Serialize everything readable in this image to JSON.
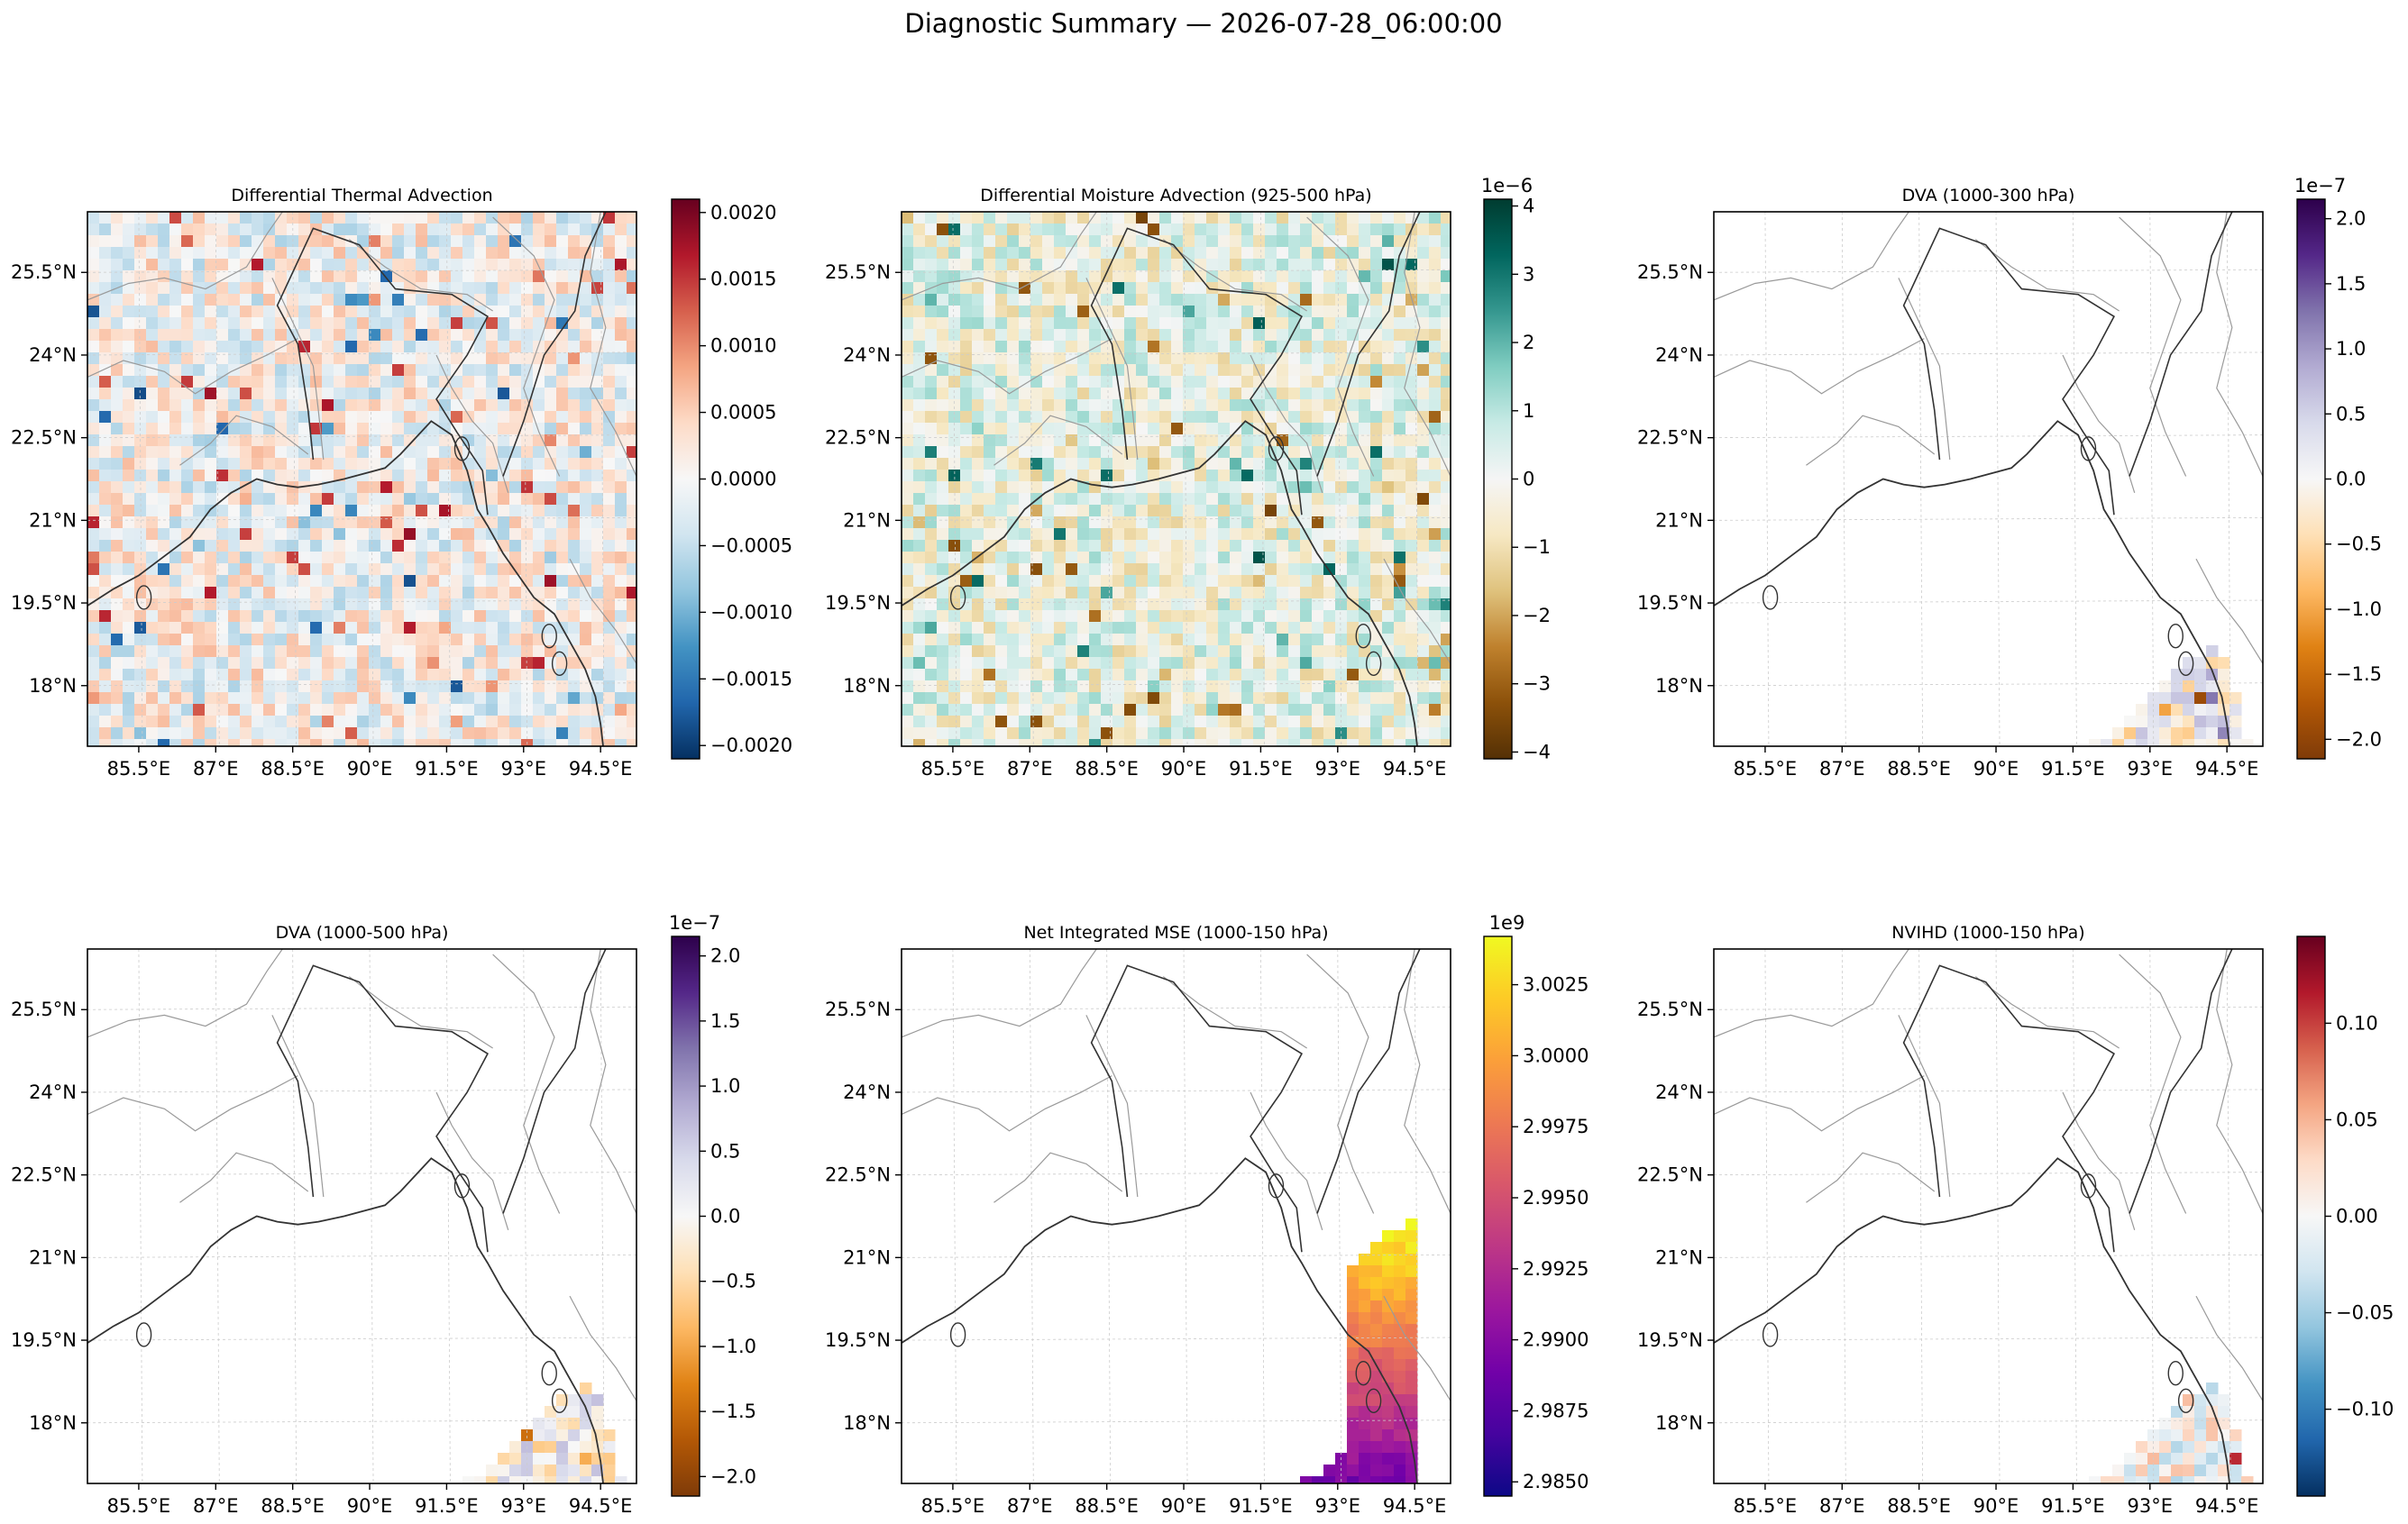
{
  "figure": {
    "title": "Diagnostic Summary — 2026-07-28_06:00:00"
  },
  "map": {
    "lon_ticks": [
      "85.5°E",
      "87°E",
      "88.5°E",
      "90°E",
      "91.5°E",
      "93°E",
      "94.5°E"
    ],
    "lat_ticks": [
      "25.5°N",
      "24°N",
      "22.5°N",
      "21°N",
      "19.5°N",
      "18°N"
    ],
    "lon_values": [
      85.5,
      87,
      88.5,
      90,
      91.5,
      93,
      94.5
    ],
    "lat_values": [
      25.5,
      24,
      22.5,
      21,
      19.5,
      18
    ],
    "extent": {
      "lon": [
        84.5,
        95.2
      ],
      "lat": [
        16.9,
        26.6
      ]
    }
  },
  "chart_data": [
    {
      "type": "heatmap",
      "title": "Differential Thermal Advection",
      "colormap": "RdBu_r",
      "coverage": "full",
      "colorbar": {
        "range": [
          -0.0021,
          0.0021
        ],
        "offset": "",
        "ticks": [
          0.002,
          0.0015,
          0.001,
          0.0005,
          0.0,
          -0.0005,
          -0.001,
          -0.0015,
          -0.002
        ],
        "tick_labels": [
          "0.0020",
          "0.0015",
          "0.0010",
          "0.0005",
          "0.0000",
          "−0.0005",
          "−0.0010",
          "−0.0015",
          "−0.0020"
        ]
      }
    },
    {
      "type": "heatmap",
      "title": "Differential Moisture Advection (925-500 hPa)",
      "colormap": "BrBG",
      "coverage": "full",
      "colorbar": {
        "range": [
          -4.1,
          4.1
        ],
        "offset": "1e−6",
        "ticks": [
          4,
          3,
          2,
          1,
          0,
          -1,
          -2,
          -3,
          -4
        ],
        "tick_labels": [
          "4",
          "3",
          "2",
          "1",
          "0",
          "−1",
          "−2",
          "−3",
          "−4"
        ]
      }
    },
    {
      "type": "heatmap",
      "title": "DVA (1000-300 hPa)",
      "colormap": "PuOr",
      "coverage": "south-east corner",
      "colorbar": {
        "range": [
          -2.15,
          2.15
        ],
        "offset": "1e−7",
        "ticks": [
          2.0,
          1.5,
          1.0,
          0.5,
          0.0,
          -0.5,
          -1.0,
          -1.5,
          -2.0
        ],
        "tick_labels": [
          "2.0",
          "1.5",
          "1.0",
          "0.5",
          "0.0",
          "−0.5",
          "−1.0",
          "−1.5",
          "−2.0"
        ]
      }
    },
    {
      "type": "heatmap",
      "title": "DVA (1000-500 hPa)",
      "colormap": "PuOr",
      "coverage": "south-east corner",
      "colorbar": {
        "range": [
          -2.15,
          2.15
        ],
        "offset": "1e−7",
        "ticks": [
          2.0,
          1.5,
          1.0,
          0.5,
          0.0,
          -0.5,
          -1.0,
          -1.5,
          -2.0
        ],
        "tick_labels": [
          "2.0",
          "1.5",
          "1.0",
          "0.5",
          "0.0",
          "−0.5",
          "−1.0",
          "−1.5",
          "−2.0"
        ]
      }
    },
    {
      "type": "heatmap",
      "title": "Net Integrated MSE (1000-150 hPa)",
      "colormap": "plasma",
      "coverage": "south-east corner",
      "colorbar": {
        "range": [
          2.9845,
          3.0042
        ],
        "offset": "1e9",
        "ticks": [
          3.0025,
          3.0,
          2.9975,
          2.995,
          2.9925,
          2.99,
          2.9875,
          2.985
        ],
        "tick_labels": [
          "3.0025",
          "3.0000",
          "2.9975",
          "2.9950",
          "2.9925",
          "2.9900",
          "2.9875",
          "2.9850"
        ]
      }
    },
    {
      "type": "heatmap",
      "title": "NVIHD (1000-150 hPa)",
      "colormap": "RdBu_r",
      "coverage": "south-east corner",
      "colorbar": {
        "range": [
          -0.145,
          0.145
        ],
        "offset": "",
        "ticks": [
          0.1,
          0.05,
          0.0,
          -0.05,
          -0.1
        ],
        "tick_labels": [
          "0.10",
          "0.05",
          "0.00",
          "−0.05",
          "−0.10"
        ]
      }
    }
  ]
}
